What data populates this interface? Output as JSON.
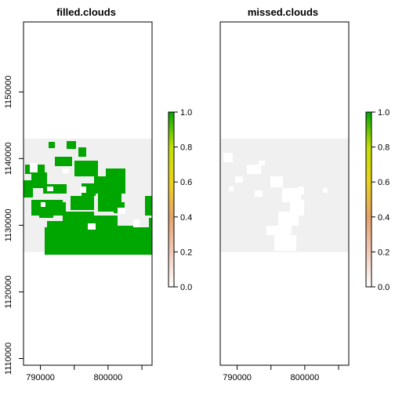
{
  "chart_data": [
    {
      "type": "heatmap",
      "title": "filled.clouds",
      "xlabel": "",
      "ylabel": "",
      "xlim": [
        787500,
        806500
      ],
      "ylim": [
        1109000,
        1160500
      ],
      "x_ticks": [
        790000,
        800000
      ],
      "x_tick_labels": [
        "790000",
        "800000"
      ],
      "y_ticks": [
        1110000,
        1120000,
        1130000,
        1140000,
        1150000
      ],
      "y_tick_labels": [
        "1110000",
        "1120000",
        "1130000",
        "1140000",
        "1150000"
      ],
      "raster_extent": {
        "x": [
          787500,
          806500
        ],
        "y": [
          1126000,
          1143000
        ]
      },
      "background_color": "#f0f0f0",
      "fill_color": "#00a600",
      "value_range": [
        0,
        1
      ],
      "dominant_value": 1.0,
      "legend": {
        "position": "right",
        "ticks": [
          0.0,
          0.2,
          0.4,
          0.6,
          0.8,
          1.0
        ],
        "tick_labels": [
          "0.0",
          "0.2",
          "0.4",
          "0.6",
          "0.8",
          "1.0"
        ],
        "colors": [
          "#ffffff",
          "#f2c9b8",
          "#e6a36a",
          "#ebd31a",
          "#c3e000",
          "#00a600"
        ]
      }
    },
    {
      "type": "heatmap",
      "title": "missed.clouds",
      "xlabel": "",
      "ylabel": "",
      "xlim": [
        787500,
        806500
      ],
      "ylim": [
        1109000,
        1160500
      ],
      "x_ticks": [
        790000,
        800000
      ],
      "x_tick_labels": [
        "790000",
        "800000"
      ],
      "y_ticks": [],
      "y_tick_labels": [],
      "raster_extent": {
        "x": [
          787500,
          806500
        ],
        "y": [
          1126000,
          1143000
        ]
      },
      "background_color": "#f0f0f0",
      "fill_color": "#ffffff",
      "value_range": [
        0,
        1
      ],
      "dominant_value": 0.0,
      "legend": {
        "position": "right",
        "ticks": [
          0.0,
          0.2,
          0.4,
          0.6,
          0.8,
          1.0
        ],
        "tick_labels": [
          "0.0",
          "0.2",
          "0.4",
          "0.6",
          "0.8",
          "1.0"
        ],
        "colors": [
          "#ffffff",
          "#f2c9b8",
          "#e6a36a",
          "#ebd31a",
          "#c3e000",
          "#00a600"
        ]
      }
    }
  ]
}
